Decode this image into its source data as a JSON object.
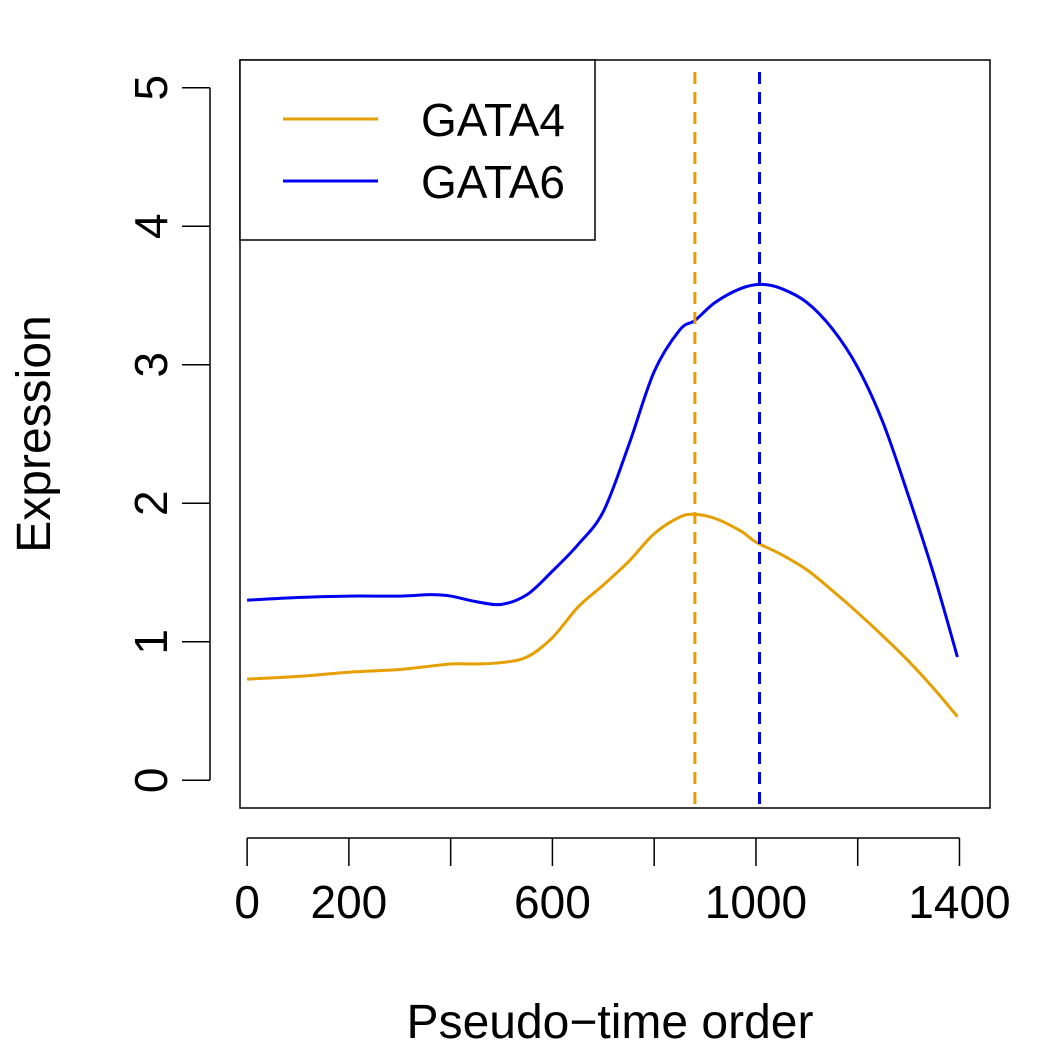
{
  "chart_data": {
    "type": "line",
    "title": "",
    "xlabel": "Pseudo−time order",
    "ylabel": "Expression",
    "xlim": [
      -14,
      1460
    ],
    "ylim": [
      -0.2,
      5.2
    ],
    "x_ticks": [
      0,
      200,
      400,
      600,
      800,
      1000,
      1200,
      1400
    ],
    "x_tick_labels": [
      {
        "value": 0,
        "label": "0"
      },
      {
        "value": 200,
        "label": "200"
      },
      {
        "value": 600,
        "label": "600"
      },
      {
        "value": 1000,
        "label": "1000"
      },
      {
        "value": 1400,
        "label": "1400"
      }
    ],
    "y_ticks": [
      0,
      1,
      2,
      3,
      4,
      5
    ],
    "y_tick_labels": [
      "0",
      "1",
      "2",
      "3",
      "4",
      "5"
    ],
    "grid": false,
    "legend_position": "top-left",
    "series": [
      {
        "name": "GATA4",
        "color": "#E69F00",
        "points": [
          [
            0,
            0.73
          ],
          [
            100,
            0.75
          ],
          [
            200,
            0.78
          ],
          [
            300,
            0.8
          ],
          [
            350,
            0.82
          ],
          [
            400,
            0.84
          ],
          [
            450,
            0.84
          ],
          [
            500,
            0.85
          ],
          [
            550,
            0.89
          ],
          [
            600,
            1.03
          ],
          [
            650,
            1.25
          ],
          [
            700,
            1.41
          ],
          [
            750,
            1.58
          ],
          [
            800,
            1.78
          ],
          [
            850,
            1.9
          ],
          [
            880,
            1.92
          ],
          [
            920,
            1.89
          ],
          [
            970,
            1.8
          ],
          [
            1000,
            1.72
          ],
          [
            1050,
            1.63
          ],
          [
            1100,
            1.52
          ],
          [
            1150,
            1.37
          ],
          [
            1200,
            1.21
          ],
          [
            1250,
            1.04
          ],
          [
            1300,
            0.86
          ],
          [
            1350,
            0.66
          ],
          [
            1396,
            0.46
          ]
        ],
        "peak_line_x": 880
      },
      {
        "name": "GATA6",
        "color": "#0000F0",
        "points": [
          [
            0,
            1.3
          ],
          [
            100,
            1.32
          ],
          [
            200,
            1.33
          ],
          [
            300,
            1.33
          ],
          [
            360,
            1.34
          ],
          [
            400,
            1.33
          ],
          [
            450,
            1.29
          ],
          [
            500,
            1.27
          ],
          [
            550,
            1.34
          ],
          [
            600,
            1.51
          ],
          [
            650,
            1.7
          ],
          [
            700,
            1.94
          ],
          [
            750,
            2.42
          ],
          [
            800,
            2.95
          ],
          [
            850,
            3.25
          ],
          [
            880,
            3.32
          ],
          [
            920,
            3.45
          ],
          [
            970,
            3.55
          ],
          [
            1010,
            3.58
          ],
          [
            1050,
            3.55
          ],
          [
            1100,
            3.45
          ],
          [
            1150,
            3.26
          ],
          [
            1200,
            2.98
          ],
          [
            1250,
            2.58
          ],
          [
            1300,
            2.05
          ],
          [
            1350,
            1.48
          ],
          [
            1396,
            0.89
          ]
        ],
        "peak_line_x": 1007
      }
    ]
  }
}
